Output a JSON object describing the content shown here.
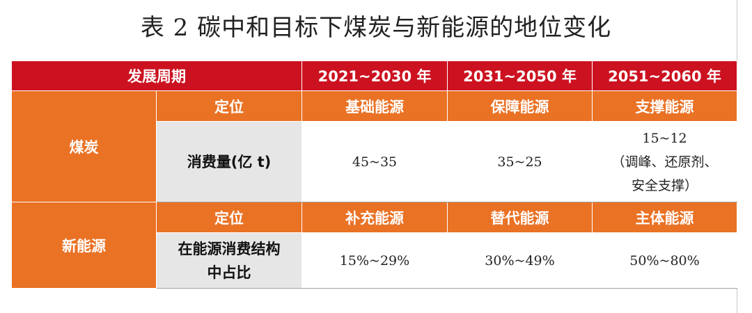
{
  "title": "表 2 碳中和目标下煤炭与新能源的地位变化",
  "header": {
    "period_label": "发展周期",
    "col1": "2021~2030 年",
    "col2": "2031~2050 年",
    "col3": "2051~2060 年"
  },
  "coal": {
    "label": "煤炭",
    "position_label": "定位",
    "positions": [
      "基础能源",
      "保障能源",
      "支撑能源"
    ],
    "consumption_label": "消费量(亿 t)",
    "consumption": [
      "45~35",
      "35~25",
      "15~12\n（调峰、还原剂、\n安全支撑）"
    ]
  },
  "new_energy": {
    "label": "新能源",
    "position_label": "定位",
    "positions": [
      "补充能源",
      "替代能源",
      "主体能源"
    ],
    "share_label": "在能源消费结构\n中占比",
    "share": [
      "15%~29%",
      "30%~49%",
      "50%~80%"
    ]
  },
  "colors": {
    "header_red": "#cc1220",
    "accent_orange": "#ea7225",
    "label_grey": "#e6e6e6"
  }
}
